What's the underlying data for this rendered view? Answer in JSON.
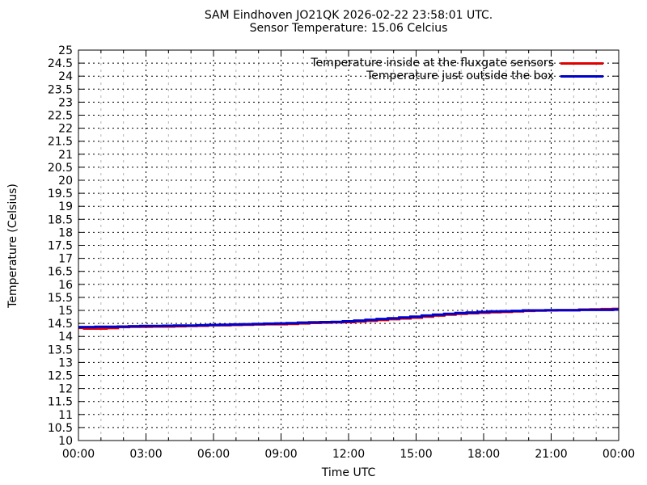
{
  "chart_data": {
    "type": "line",
    "title": "SAM Eindhoven JO21QK 2026-02-22 23:58:01 UTC.",
    "subtitle": "Sensor Temperature: 15.06 Celcius",
    "xlabel": "Time UTC",
    "ylabel": "Temperature (Celsius)",
    "ylim": [
      10,
      25
    ],
    "ytick_step": 0.5,
    "y_tick_labels": [
      "10",
      "10.5",
      "11",
      "11.5",
      "12",
      "12.5",
      "13",
      "13.5",
      "14",
      "14.5",
      "15",
      "15.5",
      "16",
      "16.5",
      "17",
      "17.5",
      "18",
      "18.5",
      "19",
      "19.5",
      "20",
      "20.5",
      "21",
      "21.5",
      "22",
      "22.5",
      "23",
      "23.5",
      "24",
      "24.5",
      "25"
    ],
    "xlim_hours": [
      0,
      24
    ],
    "x_major_tick_every_hours": 3,
    "x_minor_tick_every_hours": 1,
    "x_tick_labels": [
      "00:00",
      "03:00",
      "06:00",
      "09:00",
      "12:00",
      "15:00",
      "18:00",
      "21:00",
      "00:00"
    ],
    "grid": {
      "major_color": "#000000",
      "minor_color": "#b3b3b3",
      "style": "dotted",
      "horizontal_every": 0.5,
      "vertical_minor_every_hours": 1,
      "vertical_major_every_hours": 3
    },
    "legend_position": "top-right-inside",
    "x_hours": [
      0,
      0.5,
      1,
      1.5,
      2,
      2.5,
      3,
      3.5,
      4,
      4.5,
      5,
      5.5,
      6,
      6.5,
      7,
      7.5,
      8,
      8.5,
      9,
      9.5,
      10,
      10.5,
      11,
      11.5,
      12,
      12.5,
      13,
      13.5,
      14,
      14.5,
      15,
      15.5,
      16,
      16.5,
      17,
      17.5,
      18,
      18.5,
      19,
      19.5,
      20,
      20.5,
      21,
      21.5,
      22,
      22.5,
      23,
      23.5,
      24
    ],
    "series": [
      {
        "name": "Temperature inside at the fluxgate sensors",
        "color": "#e00000",
        "values": [
          14.33,
          14.3,
          14.3,
          14.32,
          14.36,
          14.37,
          14.37,
          14.38,
          14.38,
          14.39,
          14.4,
          14.41,
          14.43,
          14.43,
          14.44,
          14.45,
          14.46,
          14.47,
          14.47,
          14.48,
          14.5,
          14.52,
          14.53,
          14.54,
          14.55,
          14.57,
          14.6,
          14.63,
          14.66,
          14.69,
          14.72,
          14.76,
          14.8,
          14.84,
          14.87,
          14.89,
          14.91,
          14.93,
          14.94,
          14.96,
          14.98,
          14.99,
          15.0,
          15.01,
          15.01,
          15.03,
          15.04,
          15.05,
          15.06
        ]
      },
      {
        "name": "Temperature just outside the box",
        "color": "#0000cc",
        "values": [
          14.36,
          14.36,
          14.37,
          14.37,
          14.38,
          14.39,
          14.4,
          14.4,
          14.41,
          14.42,
          14.42,
          14.43,
          14.44,
          14.45,
          14.46,
          14.47,
          14.48,
          14.49,
          14.5,
          14.51,
          14.53,
          14.54,
          14.55,
          14.56,
          14.58,
          14.61,
          14.64,
          14.67,
          14.7,
          14.73,
          14.76,
          14.8,
          14.84,
          14.87,
          14.9,
          14.92,
          14.94,
          14.96,
          14.97,
          14.98,
          15.0,
          15.0,
          15.01,
          15.01,
          15.01,
          15.02,
          15.02,
          15.02,
          15.03
        ]
      }
    ]
  }
}
